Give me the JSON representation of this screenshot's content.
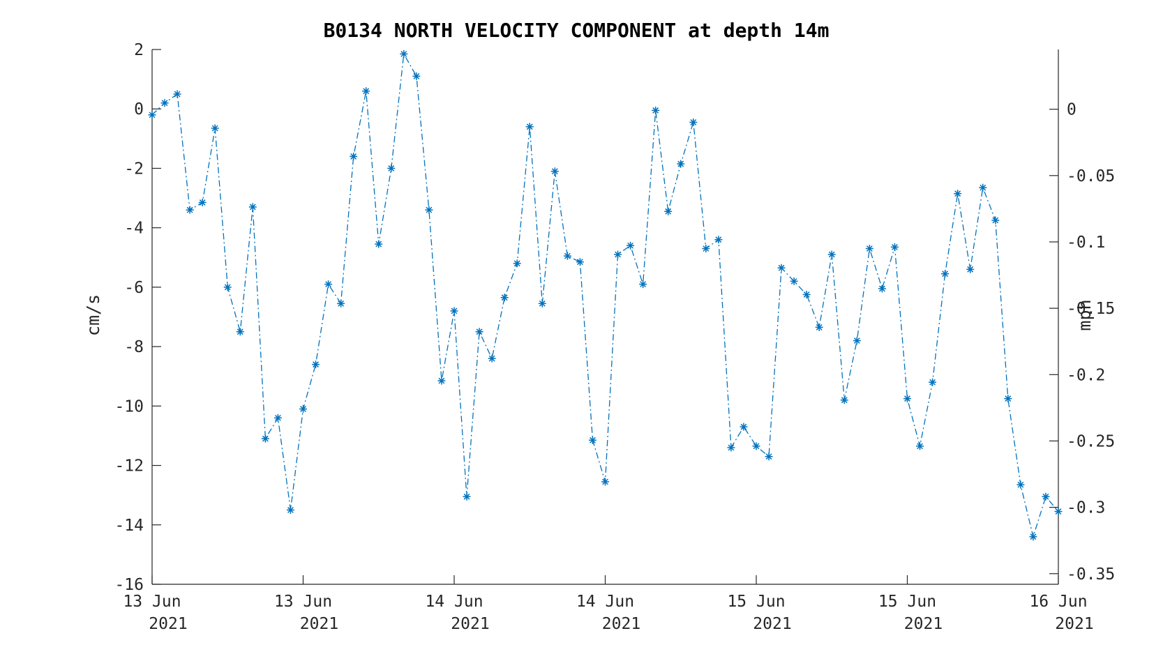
{
  "chart_data": {
    "type": "line",
    "title": "B0134 NORTH VELOCITY COMPONENT at depth 14m",
    "ylabel": "cm/s",
    "ylabel_right": "mph",
    "ylim": [
      -16,
      2
    ],
    "yticks": [
      2,
      0,
      -2,
      -4,
      -6,
      -8,
      -10,
      -12,
      -14,
      -16
    ],
    "ylim_right": [
      -0.358,
      0.045
    ],
    "yticks_right": [
      "0",
      "-0.05",
      "-0.1",
      "-0.15",
      "-0.2",
      "-0.25",
      "-0.3",
      "-0.35"
    ],
    "yticks_right_values": [
      0,
      -0.05,
      -0.1,
      -0.15,
      -0.2,
      -0.25,
      -0.3,
      -0.35
    ],
    "xlim": [
      0,
      72
    ],
    "xticks": [
      {
        "hours": 0,
        "line1": "13 Jun",
        "line2": "2021"
      },
      {
        "hours": 12,
        "line1": "13 Jun",
        "line2": "2021"
      },
      {
        "hours": 24,
        "line1": "14 Jun",
        "line2": "2021"
      },
      {
        "hours": 36,
        "line1": "14 Jun",
        "line2": "2021"
      },
      {
        "hours": 48,
        "line1": "15 Jun",
        "line2": "2021"
      },
      {
        "hours": 60,
        "line1": "15 Jun",
        "line2": "2021"
      },
      {
        "hours": 72,
        "line1": "16 Jun",
        "line2": "2021"
      }
    ],
    "legend": "none",
    "grid": false,
    "series": [
      {
        "color": "#0072BD",
        "marker": "asterisk",
        "line_style": "dash-dot",
        "x_hours": [
          0,
          1,
          2,
          3,
          4,
          5,
          6,
          7,
          8,
          9,
          10,
          11,
          12,
          13,
          14,
          15,
          16,
          17,
          18,
          19,
          20,
          21,
          22,
          23,
          24,
          25,
          26,
          27,
          28,
          29,
          30,
          31,
          32,
          33,
          34,
          35,
          36,
          37,
          38,
          39,
          40,
          41,
          42,
          43,
          44,
          45,
          46,
          47,
          48,
          49,
          50,
          51,
          52,
          53,
          54,
          55,
          56,
          57,
          58,
          59,
          60,
          61,
          62,
          63,
          64,
          65,
          66,
          67,
          68,
          69,
          70,
          71,
          72
        ],
        "values": [
          -0.2,
          0.2,
          0.5,
          -3.4,
          -3.15,
          -0.65,
          -6.0,
          -7.5,
          -3.3,
          -11.1,
          -10.4,
          -13.5,
          -10.1,
          -8.6,
          -5.9,
          -6.55,
          -1.6,
          0.6,
          -4.55,
          -2.0,
          1.85,
          1.1,
          -3.4,
          -9.15,
          -6.8,
          -13.05,
          -7.5,
          -8.4,
          -6.35,
          -5.2,
          -0.6,
          -6.55,
          -2.1,
          -4.95,
          -5.15,
          -11.15,
          -12.55,
          -4.9,
          -4.6,
          -5.9,
          -0.05,
          -3.45,
          -1.85,
          -0.45,
          -4.7,
          -4.4,
          -11.4,
          -10.7,
          -11.35,
          -11.7,
          -5.35,
          -5.8,
          -6.25,
          -7.35,
          -4.9,
          -9.8,
          -7.8,
          -4.7,
          -6.05,
          -4.65,
          -9.75,
          -11.35,
          -9.2,
          -5.55,
          -2.85,
          -5.4,
          -2.65,
          -3.75,
          -9.75,
          -12.65,
          -14.4,
          -13.05,
          -13.55
        ]
      }
    ]
  }
}
